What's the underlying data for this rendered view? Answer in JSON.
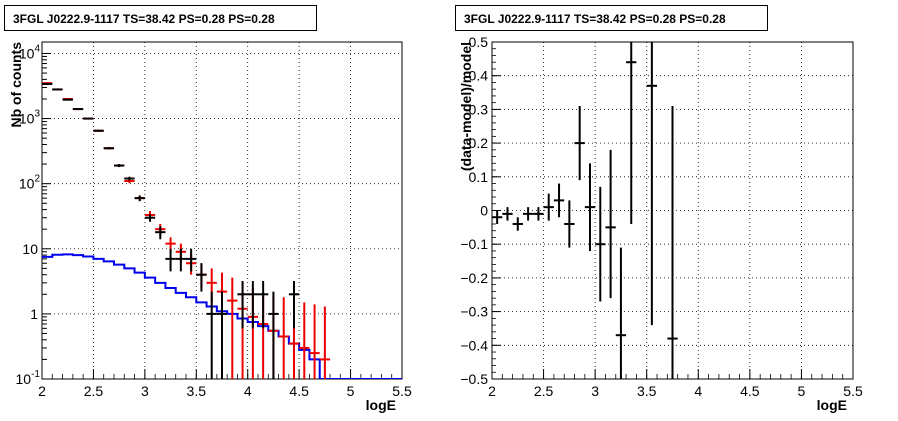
{
  "chart_data": [
    {
      "type": "line",
      "title": "3FGL J0222.9-1117 TS=38.42 PS=0.28 PS=0.28",
      "xlabel": "logE",
      "ylabel": "Nb of counts",
      "xlim": [
        2,
        5.5
      ],
      "ylim": [
        0.1,
        15000
      ],
      "yscale": "log",
      "grid": true,
      "x_ticks": [
        "2",
        "2.5",
        "3",
        "3.5",
        "4",
        "4.5",
        "5",
        "5.5"
      ],
      "x_tick_values": [
        2,
        2.5,
        3,
        3.5,
        4,
        4.5,
        5,
        5.5
      ],
      "y_ticks": [
        {
          "value": 0.1,
          "label": "10",
          "exp": "-1"
        },
        {
          "value": 1,
          "label": "1",
          "exp": ""
        },
        {
          "value": 10,
          "label": "10",
          "exp": ""
        },
        {
          "value": 100,
          "label": "10",
          "exp": "2"
        },
        {
          "value": 1000,
          "label": "10",
          "exp": "3"
        },
        {
          "value": 10000,
          "label": "10",
          "exp": "4"
        }
      ],
      "series": [
        {
          "color": "#0000ee",
          "style": "step",
          "x": [
            2.05,
            2.15,
            2.25,
            2.35,
            2.45,
            2.55,
            2.65,
            2.75,
            2.85,
            2.95,
            3.05,
            3.15,
            3.25,
            3.35,
            3.45,
            3.55,
            3.65,
            3.75,
            3.85,
            3.95,
            4.05,
            4.15,
            4.25,
            4.35,
            4.45,
            4.55,
            4.65,
            4.75,
            4.85,
            4.95,
            5.05,
            5.15,
            5.25,
            5.35,
            5.45
          ],
          "y": [
            7.5,
            8.1,
            8.2,
            8.0,
            7.6,
            7.0,
            6.4,
            5.7,
            5.0,
            4.3,
            3.6,
            3.0,
            2.5,
            2.1,
            1.8,
            1.5,
            1.3,
            1.1,
            1.0,
            0.85,
            0.75,
            0.65,
            0.55,
            0.45,
            0.35,
            0.28,
            0.2,
            0.1,
            0.1,
            0.1,
            0.1,
            0.1,
            0.1,
            0.1,
            0.1
          ]
        },
        {
          "color": "#ee0000",
          "style": "errorbar",
          "x": [
            2.05,
            2.15,
            2.25,
            2.35,
            2.45,
            2.55,
            2.65,
            2.75,
            2.85,
            2.95,
            3.05,
            3.15,
            3.25,
            3.35,
            3.45,
            3.55,
            3.65,
            3.75,
            3.85,
            3.95,
            4.05,
            4.15,
            4.25,
            4.35,
            4.45,
            4.55,
            4.65,
            4.75
          ],
          "y": [
            3500,
            2800,
            2000,
            1400,
            1000,
            650,
            350,
            190,
            110,
            60,
            33,
            20,
            12,
            9,
            6,
            4,
            3,
            2.2,
            1.6,
            1.2,
            0.9,
            0.7,
            0.55,
            0.45,
            0.35,
            0.3,
            0.25,
            0.2
          ],
          "ylo": [
            3400,
            2700,
            1950,
            1360,
            970,
            630,
            335,
            180,
            102,
            54,
            28,
            16,
            9,
            6.5,
            4,
            2.5,
            1.5,
            0.1,
            0.1,
            0.1,
            0.1,
            0.1,
            0.1,
            0.1,
            0.1,
            0.1,
            0.1,
            0.1
          ],
          "yhi": [
            3600,
            2900,
            2050,
            1440,
            1030,
            670,
            365,
            200,
            118,
            66,
            38,
            24,
            15,
            12,
            8.5,
            6,
            5,
            4.3,
            3.6,
            3.0,
            2.5,
            2.2,
            2.0,
            1.8,
            1.6,
            1.5,
            1.4,
            1.3
          ]
        },
        {
          "color": "#000000",
          "style": "errorbar",
          "x": [
            2.05,
            2.15,
            2.25,
            2.35,
            2.45,
            2.55,
            2.65,
            2.75,
            2.85,
            2.95,
            3.05,
            3.15,
            3.25,
            3.35,
            3.45,
            3.55,
            3.65,
            3.75,
            3.95,
            4.05,
            4.15,
            4.25,
            4.45
          ],
          "y": [
            3400,
            2800,
            1950,
            1400,
            1000,
            650,
            350,
            190,
            120,
            60,
            30,
            18,
            7,
            7,
            7,
            4,
            1,
            1,
            2,
            2,
            2,
            1,
            2
          ],
          "ylo": [
            3300,
            2700,
            1900,
            1360,
            970,
            630,
            335,
            180,
            112,
            54,
            26,
            14,
            4.5,
            4.5,
            4.5,
            2.2,
            0.1,
            0.1,
            0.6,
            0.6,
            0.6,
            0.1,
            0.6
          ],
          "yhi": [
            3500,
            2900,
            2000,
            1440,
            1030,
            670,
            365,
            200,
            128,
            66,
            34,
            22,
            10,
            10,
            10,
            6,
            2.2,
            2.2,
            3.2,
            3.2,
            3.2,
            2.2,
            3.2
          ]
        }
      ]
    },
    {
      "type": "scatter",
      "title": "3FGL J0222.9-1117 TS=38.42 PS=0.28 PS=0.28",
      "xlabel": "logE",
      "ylabel": "(data-model)/model",
      "xlim": [
        2,
        5.5
      ],
      "ylim": [
        -0.5,
        0.5
      ],
      "grid": true,
      "x_ticks": [
        "2",
        "2.5",
        "3",
        "3.5",
        "4",
        "4.5",
        "5",
        "5.5"
      ],
      "x_tick_values": [
        2,
        2.5,
        3,
        3.5,
        4,
        4.5,
        5,
        5.5
      ],
      "y_ticks": [
        "−0.5",
        "−0.4",
        "−0.3",
        "−0.2",
        "−0.1",
        "0",
        "0.1",
        "0.2",
        "0.3",
        "0.4",
        "0.5"
      ],
      "y_tick_values": [
        -0.5,
        -0.4,
        -0.3,
        -0.2,
        -0.1,
        0,
        0.1,
        0.2,
        0.3,
        0.4,
        0.5
      ],
      "series": [
        {
          "color": "#000000",
          "style": "errorbar",
          "x": [
            2.05,
            2.15,
            2.25,
            2.35,
            2.45,
            2.55,
            2.65,
            2.75,
            2.85,
            2.95,
            3.05,
            3.15,
            3.25,
            3.35,
            3.55,
            3.75
          ],
          "y": [
            -0.02,
            -0.01,
            -0.04,
            -0.01,
            -0.01,
            0.01,
            0.03,
            -0.04,
            0.2,
            0.01,
            -0.1,
            -0.05,
            -0.37,
            0.44,
            0.37,
            -0.38
          ],
          "ylo": [
            -0.04,
            -0.03,
            -0.06,
            -0.03,
            -0.03,
            -0.03,
            -0.02,
            -0.11,
            0.09,
            -0.12,
            -0.27,
            -0.26,
            -0.5,
            -0.04,
            -0.34,
            -0.5
          ],
          "yhi": [
            0.0,
            0.01,
            -0.02,
            0.01,
            0.01,
            0.05,
            0.08,
            0.03,
            0.31,
            0.14,
            0.07,
            0.18,
            -0.11,
            0.5,
            0.5,
            0.31
          ]
        }
      ]
    }
  ]
}
